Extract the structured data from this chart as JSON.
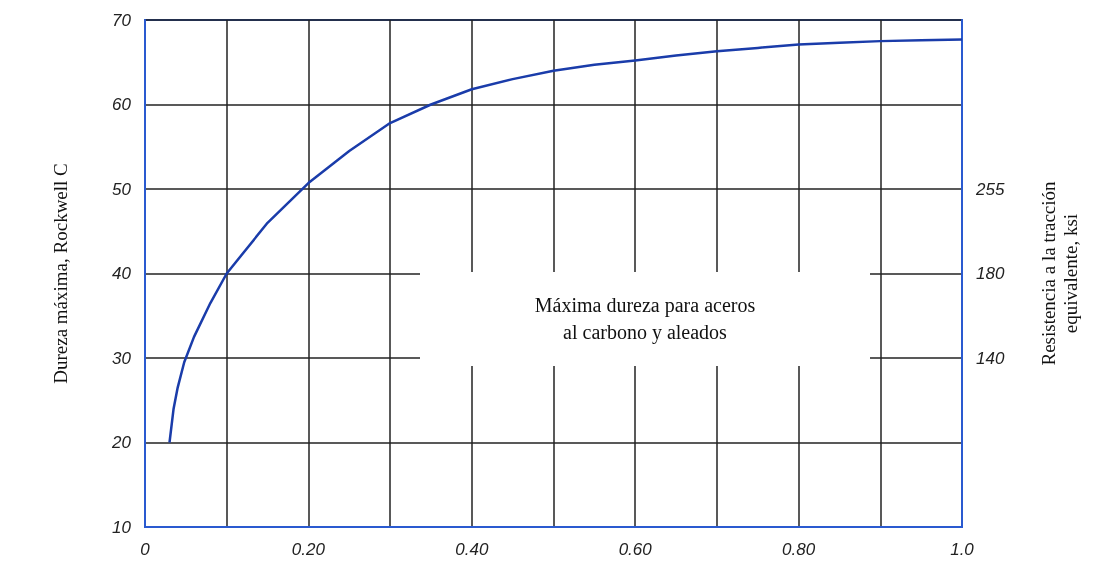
{
  "chart_data": {
    "type": "line",
    "ylabel": "Dureza máxima, Rockwell C",
    "y2label": "Resistencia a la tracción equivalente, ksi",
    "annotations": [
      "Máxima dureza para aceros\nal carbono y aleados"
    ],
    "x": [
      0.03,
      0.035,
      0.04,
      0.048,
      0.06,
      0.08,
      0.1,
      0.15,
      0.2,
      0.25,
      0.3,
      0.35,
      0.4,
      0.45,
      0.5,
      0.55,
      0.6,
      0.65,
      0.7,
      0.75,
      0.8,
      0.85,
      0.9,
      0.95,
      1.0
    ],
    "series": [
      {
        "color": "#1a3caa",
        "values": [
          20,
          24,
          26.5,
          29.5,
          32.5,
          36.5,
          40,
          46,
          50.7,
          54.5,
          57.8,
          60,
          61.8,
          63,
          64,
          64.7,
          65.2,
          65.8,
          66.3,
          66.7,
          67.1,
          67.3,
          67.5,
          67.6,
          67.7
        ]
      }
    ],
    "xlim": [
      0,
      1.0
    ],
    "xticks": [
      {
        "value": 0,
        "label": "0"
      },
      {
        "value": 0.1,
        "label": null
      },
      {
        "value": 0.2,
        "label": "0.20"
      },
      {
        "value": 0.3,
        "label": null
      },
      {
        "value": 0.4,
        "label": "0.40"
      },
      {
        "value": 0.5,
        "label": null
      },
      {
        "value": 0.6,
        "label": "0.60"
      },
      {
        "value": 0.7,
        "label": null
      },
      {
        "value": 0.8,
        "label": "0.80"
      },
      {
        "value": 0.9,
        "label": null
      },
      {
        "value": 1.0,
        "label": "1.0"
      }
    ],
    "ylim": [
      10,
      70
    ],
    "yticks": [
      10,
      20,
      30,
      40,
      50,
      60,
      70
    ],
    "y2_categories": [
      null,
      null,
      "255",
      "180",
      "140",
      null,
      null
    ],
    "grid": true
  }
}
